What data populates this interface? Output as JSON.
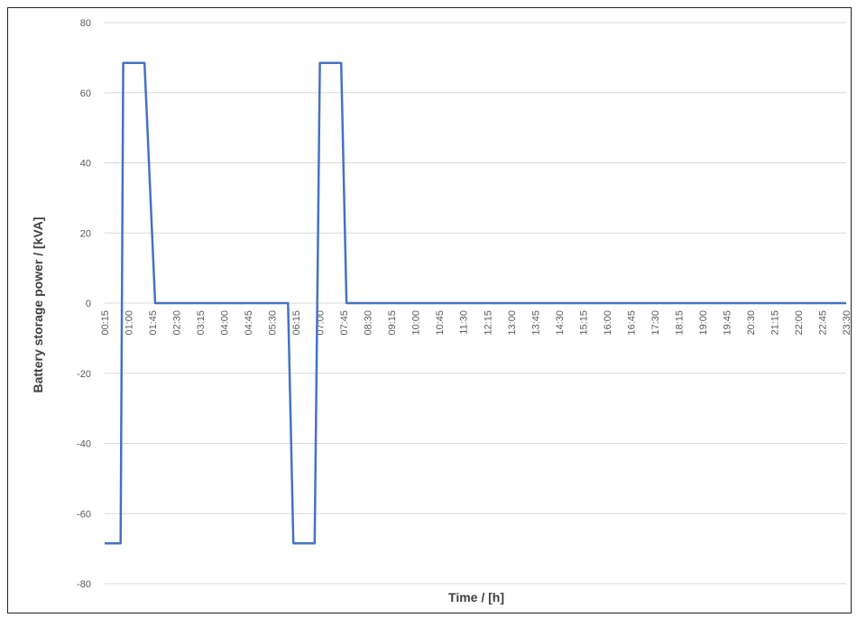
{
  "chart_data": {
    "type": "line",
    "title": "",
    "xlabel": "Time / [h]",
    "ylabel": "Battery storage power / [kVA]",
    "ylim": [
      -80,
      80
    ],
    "yticks": [
      80,
      60,
      40,
      20,
      0,
      -20,
      -40,
      -60,
      -80
    ],
    "grid": true,
    "line_color": "#4472C4",
    "grid_color": "#d9d9d9",
    "xtick_labels": [
      "00:15",
      "01:00",
      "01:45",
      "02:30",
      "03:15",
      "04:00",
      "04:45",
      "05:30",
      "06:15",
      "07:00",
      "07:45",
      "08:30",
      "09:15",
      "10:00",
      "10:45",
      "11:30",
      "12:15",
      "13:00",
      "13:45",
      "14:30",
      "15:15",
      "16:00",
      "16:45",
      "17:30",
      "18:15",
      "19:00",
      "19:45",
      "20:30",
      "21:15",
      "22:00",
      "22:45",
      "23:30"
    ],
    "x_start": "00:15",
    "x_end": "23:30",
    "series": [
      {
        "points": [
          [
            "00:15",
            -68.5
          ],
          [
            "00:45",
            -68.5
          ],
          [
            "00:50",
            68.5
          ],
          [
            "01:30",
            68.5
          ],
          [
            "01:50",
            0
          ],
          [
            "06:00",
            0
          ],
          [
            "06:10",
            -68.5
          ],
          [
            "06:50",
            -68.5
          ],
          [
            "07:00",
            68.5
          ],
          [
            "07:40",
            68.5
          ],
          [
            "07:50",
            0
          ],
          [
            "23:30",
            0
          ]
        ]
      }
    ]
  }
}
